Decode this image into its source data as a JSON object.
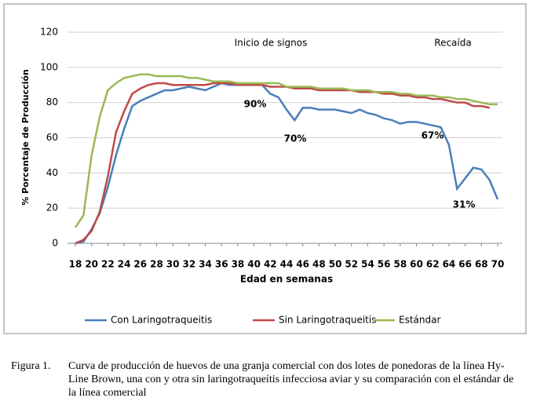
{
  "chart_data": {
    "type": "line",
    "ylabel": "% Porcentaje de Producción",
    "xlabel": "Edad en semanas",
    "x": [
      18,
      19,
      20,
      21,
      22,
      23,
      24,
      25,
      26,
      27,
      28,
      29,
      30,
      31,
      32,
      33,
      34,
      35,
      36,
      37,
      38,
      39,
      40,
      41,
      42,
      43,
      44,
      45,
      46,
      47,
      48,
      49,
      50,
      51,
      52,
      53,
      54,
      55,
      56,
      57,
      58,
      59,
      60,
      61,
      62,
      63,
      64,
      65,
      66,
      67,
      68,
      69,
      70
    ],
    "xlim": [
      18,
      70
    ],
    "xticks": [
      18,
      20,
      22,
      24,
      26,
      28,
      30,
      32,
      34,
      36,
      38,
      40,
      42,
      44,
      46,
      48,
      50,
      52,
      54,
      56,
      58,
      60,
      62,
      64,
      66,
      68,
      70
    ],
    "ylim": [
      0,
      120
    ],
    "yticks": [
      0,
      20,
      40,
      60,
      80,
      100,
      120
    ],
    "grid": true,
    "legend": "bottom",
    "series": [
      {
        "name": "Con Laringotraqueitis",
        "color": "#4a7ebb",
        "values": [
          0,
          1,
          8,
          17,
          32,
          50,
          65,
          78,
          81,
          83,
          85,
          87,
          87,
          88,
          89,
          88,
          87,
          89,
          91,
          90,
          90,
          90,
          90,
          90,
          85,
          83,
          76,
          70,
          77,
          77,
          76,
          76,
          76,
          75,
          74,
          76,
          74,
          73,
          71,
          70,
          68,
          69,
          69,
          68,
          67,
          66,
          56,
          31,
          37,
          43,
          42,
          36,
          25
        ]
      },
      {
        "name": "Sin Laringotraqueitis",
        "color": "#be4b48",
        "values": [
          0,
          2,
          7,
          18,
          38,
          63,
          75,
          85,
          88,
          90,
          91,
          91,
          90,
          90,
          90,
          90,
          90,
          91,
          91,
          91,
          90,
          90,
          90,
          90,
          89,
          89,
          89,
          88,
          88,
          88,
          87,
          87,
          87,
          87,
          87,
          86,
          86,
          86,
          85,
          85,
          84,
          84,
          83,
          83,
          82,
          82,
          81,
          80,
          80,
          78,
          78,
          77,
          null
        ]
      },
      {
        "name": "Estándar",
        "color": "#98b954",
        "values": [
          9,
          16,
          50,
          72,
          87,
          91,
          94,
          95,
          96,
          96,
          95,
          95,
          95,
          95,
          94,
          94,
          93,
          92,
          92,
          92,
          91,
          91,
          91,
          91,
          91,
          91,
          89,
          89,
          89,
          89,
          88,
          88,
          88,
          88,
          87,
          87,
          87,
          86,
          86,
          86,
          85,
          85,
          84,
          84,
          84,
          83,
          83,
          82,
          82,
          81,
          80,
          79,
          79
        ]
      }
    ],
    "annotations": [
      "Inicio de signos",
      "Recaída",
      "90%",
      "70%",
      "67%",
      "31%"
    ]
  },
  "caption": {
    "label": "Figura 1.",
    "text": "Curva de producción de huevos de una granja comercial con dos lotes de ponedoras de la línea Hy-Line Brown, una con y otra sin laringotraqueítis infecciosa aviar y su comparación con el estándar de la línea comercial"
  }
}
